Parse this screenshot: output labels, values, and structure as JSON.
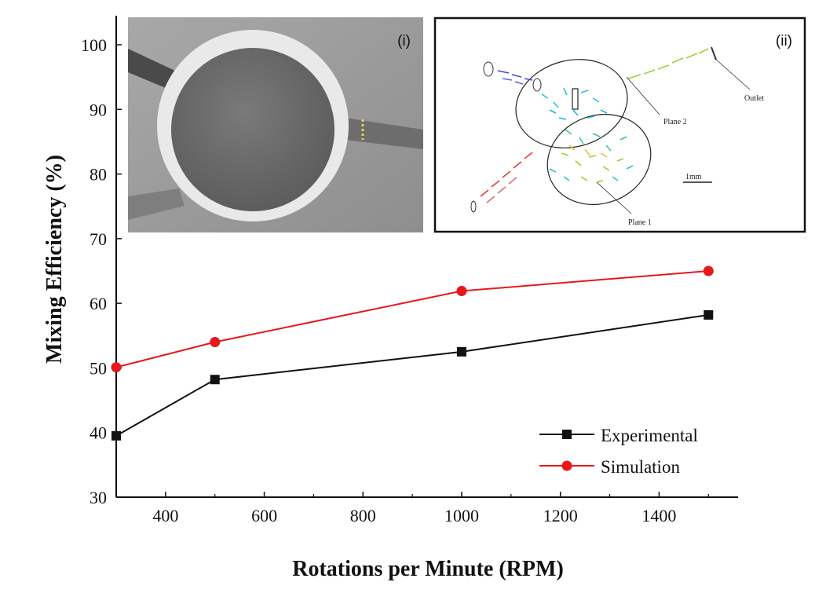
{
  "chart_data": {
    "type": "line",
    "title": "",
    "xlabel": "Rotations per Minute (RPM)",
    "ylabel": "Mixing Efficiency (%)",
    "xlim": [
      300,
      1560
    ],
    "ylim": [
      30,
      100
    ],
    "xticks": [
      400,
      600,
      800,
      1000,
      1200,
      1400
    ],
    "yticks": [
      30,
      40,
      50,
      60,
      70,
      80,
      90,
      100
    ],
    "grid": false,
    "legend_position": "bottom-right",
    "series": [
      {
        "name": "Experimental",
        "color": "#111111",
        "marker": "square",
        "x": [
          300,
          500,
          1000,
          1500
        ],
        "y": [
          39.5,
          48.2,
          52.5,
          58.2
        ]
      },
      {
        "name": "Simulation",
        "color": "#e8171c",
        "marker": "circle",
        "x": [
          300,
          500,
          1000,
          1500
        ],
        "y": [
          50.1,
          54.0,
          61.9,
          65.0
        ]
      }
    ]
  },
  "insets": {
    "photo": {
      "tag": "(i)"
    },
    "simulation": {
      "tag": "(ii)",
      "labels": {
        "plane1": "Plane 1",
        "plane2": "Plane 2",
        "outlet": "Outlet",
        "scale": "1mm"
      }
    }
  }
}
